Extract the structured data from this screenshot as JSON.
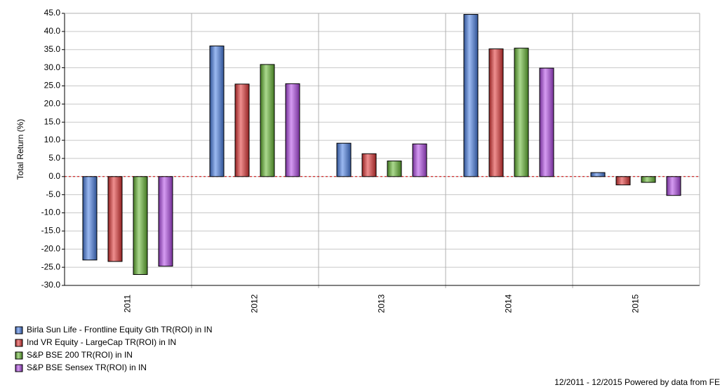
{
  "chart_data": {
    "type": "bar",
    "y_label": "Total Return (%)",
    "categories": [
      "2011",
      "2012",
      "2013",
      "2014",
      "2015"
    ],
    "series": [
      {
        "name": "Birla Sun Life - Frontline Equity Gth TR(ROI) in IN",
        "color": "#4a7fe6",
        "values": [
          -23.0,
          36.0,
          9.2,
          44.7,
          1.1
        ]
      },
      {
        "name": "Ind VR Equity - LargeCap TR(ROI) in IN",
        "color": "#e23434",
        "values": [
          -23.4,
          25.5,
          6.3,
          35.2,
          -2.3
        ]
      },
      {
        "name": "S&P BSE 200 TR(ROI) in IN",
        "color": "#66b832",
        "values": [
          -27.0,
          30.9,
          4.3,
          35.4,
          -1.6
        ]
      },
      {
        "name": "S&P BSE Sensex TR(ROI) in IN",
        "color": "#b34ae8",
        "values": [
          -24.7,
          25.6,
          9.0,
          29.9,
          -5.2
        ]
      }
    ],
    "ylim": [
      -30,
      45
    ],
    "yticks": [
      {
        "value": -30,
        "label": "-30.0"
      },
      {
        "value": -25,
        "label": "-25.0"
      },
      {
        "value": -20,
        "label": "-20.0"
      },
      {
        "value": -15,
        "label": "-15.0"
      },
      {
        "value": -10,
        "label": "-10.0"
      },
      {
        "value": -5,
        "label": "-5.0"
      },
      {
        "value": 0,
        "label": "0.0"
      },
      {
        "value": 5,
        "label": "5.0"
      },
      {
        "value": 10,
        "label": "10.0"
      },
      {
        "value": 15,
        "label": "15.0"
      },
      {
        "value": 20,
        "label": "20.0"
      },
      {
        "value": 25,
        "label": "25.0"
      },
      {
        "value": 30,
        "label": "30.0"
      },
      {
        "value": 35,
        "label": "35.0"
      },
      {
        "value": 40,
        "label": "40.0"
      },
      {
        "value": 45,
        "label": "45.0"
      }
    ],
    "grid": true,
    "footer": "12/2011 - 12/2015 Powered by data from FE"
  }
}
